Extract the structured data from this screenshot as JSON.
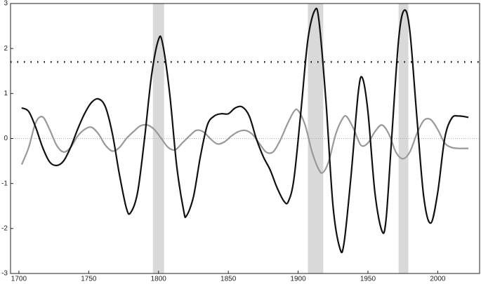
{
  "chart_data": {
    "type": "line",
    "xlim": [
      1694,
      2030
    ],
    "ylim": [
      -3,
      3
    ],
    "xticks": [
      1700,
      1750,
      1800,
      1850,
      1900,
      1950,
      2000
    ],
    "yticks": [
      -3,
      -2,
      -1,
      0,
      1,
      2,
      3
    ],
    "bands": [
      [
        1796,
        1804
      ],
      [
        1907,
        1918
      ],
      [
        1972,
        1979
      ]
    ],
    "band_color": "#d9d9d9",
    "reference_lines": [
      {
        "value": 1.7,
        "color": "#111",
        "style": "dots"
      },
      {
        "value": 0,
        "color": "#999",
        "style": "fine"
      }
    ],
    "series": [
      {
        "color": "#111",
        "x": [
          1702,
          1707,
          1712,
          1717,
          1722,
          1727,
          1732,
          1737,
          1742,
          1747,
          1752,
          1757,
          1762,
          1767,
          1772,
          1777,
          1780,
          1785,
          1790,
          1795,
          1800,
          1803,
          1808,
          1813,
          1818,
          1820,
          1825,
          1830,
          1835,
          1840,
          1845,
          1850,
          1855,
          1860,
          1865,
          1870,
          1875,
          1880,
          1885,
          1890,
          1893,
          1897,
          1902,
          1907,
          1912,
          1915,
          1920,
          1925,
          1930,
          1933,
          1938,
          1943,
          1946,
          1950,
          1955,
          1960,
          1963,
          1967,
          1972,
          1976,
          1980,
          1985,
          1990,
          1995,
          2000,
          2005,
          2010,
          2015,
          2022
        ],
        "values": [
          0.68,
          0.6,
          0.25,
          -0.2,
          -0.52,
          -0.6,
          -0.5,
          -0.2,
          0.2,
          0.55,
          0.8,
          0.88,
          0.7,
          0.1,
          -0.8,
          -1.55,
          -1.65,
          -1.2,
          0.0,
          1.4,
          2.2,
          2.1,
          1.0,
          -0.6,
          -1.6,
          -1.72,
          -1.3,
          -0.4,
          0.3,
          0.5,
          0.55,
          0.55,
          0.68,
          0.7,
          0.5,
          0.0,
          -0.4,
          -0.7,
          -1.1,
          -1.4,
          -1.4,
          -0.9,
          0.6,
          2.2,
          2.85,
          2.6,
          0.8,
          -1.5,
          -2.45,
          -2.3,
          -0.8,
          1.0,
          1.35,
          0.6,
          -1.2,
          -2.05,
          -1.8,
          0.0,
          2.2,
          2.85,
          2.4,
          0.5,
          -1.3,
          -1.88,
          -1.2,
          0.0,
          0.45,
          0.5,
          0.47
        ]
      },
      {
        "color": "#999",
        "x": [
          1702,
          1707,
          1712,
          1717,
          1722,
          1727,
          1732,
          1737,
          1742,
          1747,
          1752,
          1757,
          1762,
          1767,
          1772,
          1777,
          1782,
          1787,
          1792,
          1797,
          1802,
          1807,
          1812,
          1817,
          1822,
          1827,
          1832,
          1837,
          1842,
          1847,
          1852,
          1857,
          1862,
          1867,
          1872,
          1877,
          1882,
          1887,
          1892,
          1897,
          1900,
          1905,
          1910,
          1915,
          1918,
          1922,
          1927,
          1932,
          1935,
          1940,
          1945,
          1950,
          1955,
          1960,
          1965,
          1970,
          1975,
          1980,
          1985,
          1990,
          1995,
          2000,
          2005,
          2010,
          2015,
          2022
        ],
        "values": [
          -0.58,
          -0.2,
          0.35,
          0.48,
          0.2,
          -0.15,
          -0.3,
          -0.2,
          0.05,
          0.2,
          0.25,
          0.1,
          -0.15,
          -0.28,
          -0.2,
          0.0,
          0.15,
          0.28,
          0.3,
          0.2,
          0.0,
          -0.2,
          -0.25,
          -0.1,
          0.05,
          0.18,
          0.15,
          0.0,
          -0.12,
          -0.08,
          0.05,
          0.15,
          0.18,
          0.1,
          -0.1,
          -0.3,
          -0.3,
          -0.05,
          0.3,
          0.6,
          0.62,
          0.3,
          -0.3,
          -0.7,
          -0.75,
          -0.5,
          0.1,
          0.45,
          0.48,
          0.2,
          -0.15,
          -0.1,
          0.15,
          0.3,
          0.1,
          -0.3,
          -0.45,
          -0.3,
          0.1,
          0.4,
          0.42,
          0.2,
          -0.1,
          -0.2,
          -0.22,
          -0.22
        ]
      }
    ]
  }
}
